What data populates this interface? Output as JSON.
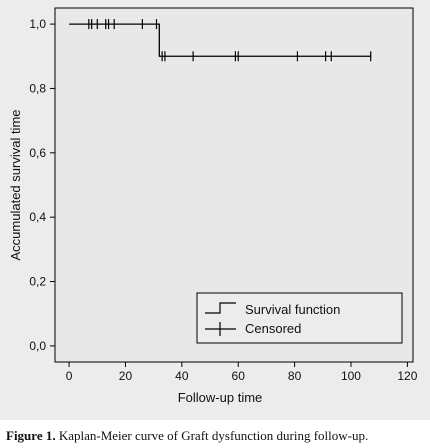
{
  "caption": {
    "label": "Figure 1.",
    "text": " Kaplan-Meier curve of Graft dysfunction during follow-up."
  },
  "chart_data": {
    "type": "line",
    "step": true,
    "xlabel": "Follow-up time",
    "ylabel": "Accumulated survival time",
    "xlim": [
      -5,
      122
    ],
    "ylim": [
      -0.05,
      1.05
    ],
    "x_ticks": [
      0,
      20,
      40,
      60,
      80,
      100,
      120
    ],
    "y_ticks": [
      0.0,
      0.2,
      0.4,
      0.6,
      0.8,
      1.0
    ],
    "y_tick_labels": [
      "0,0",
      "0,2",
      "0,4",
      "0,6",
      "0,8",
      "1,0"
    ],
    "grid": false,
    "legend": {
      "placement": "bottom-right",
      "entries": [
        "Survival function",
        "Censored"
      ]
    },
    "series": [
      {
        "name": "Survival function",
        "x": [
          0,
          32,
          32,
          107
        ],
        "y": [
          1.0,
          1.0,
          0.9,
          0.9
        ]
      },
      {
        "name": "Censored",
        "x": [
          7,
          8,
          10,
          13,
          14,
          16,
          26,
          31,
          33,
          34,
          44,
          59,
          60,
          81,
          91,
          93,
          107
        ],
        "y": [
          1.0,
          1.0,
          1.0,
          1.0,
          1.0,
          1.0,
          1.0,
          1.0,
          0.9,
          0.9,
          0.9,
          0.9,
          0.9,
          0.9,
          0.9,
          0.9,
          0.9
        ]
      }
    ],
    "colors": {
      "line": "#000000",
      "panel": "#ececec",
      "plot_area": "#e8e8e8"
    }
  }
}
